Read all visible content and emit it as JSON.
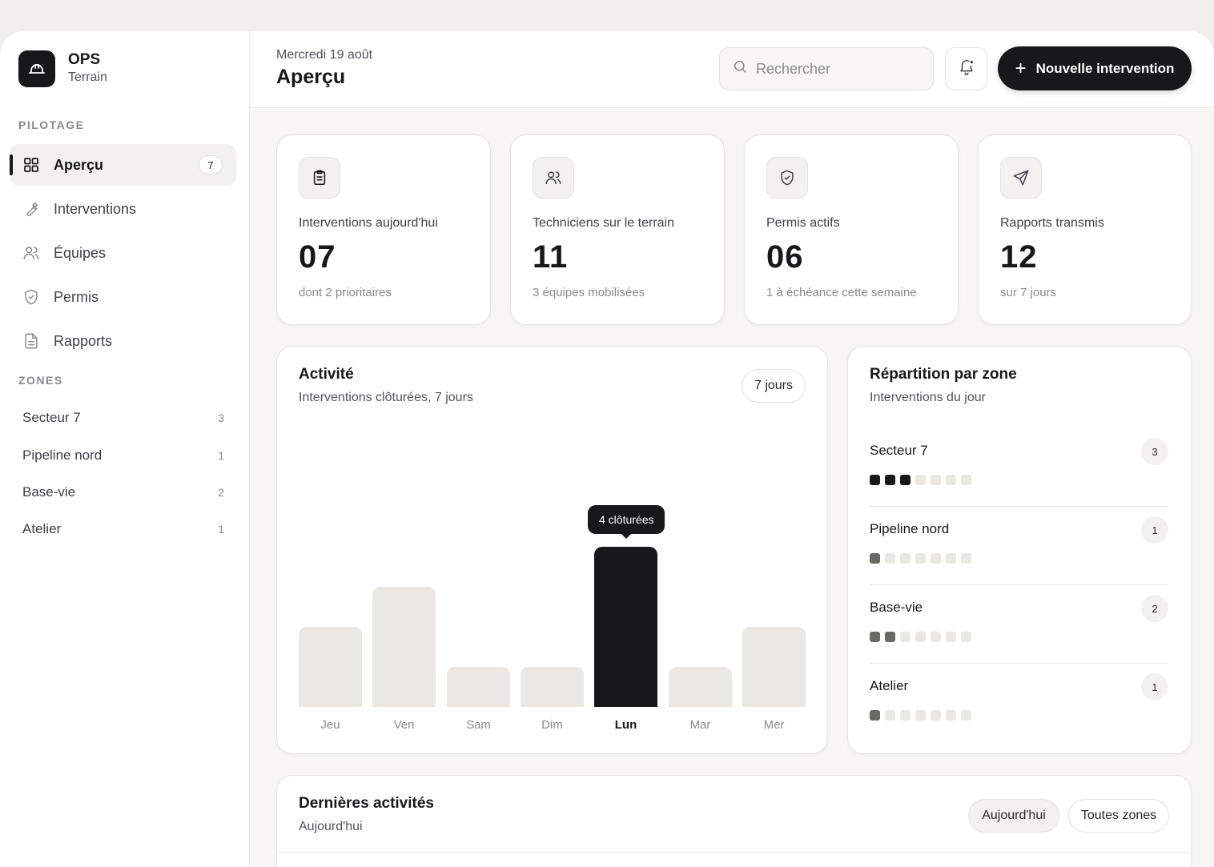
{
  "brand": {
    "name": "OPS",
    "subtitle": "Terrain"
  },
  "sidebar": {
    "section_pilotage": "PILOTAGE",
    "items": [
      {
        "label": "Aperçu",
        "icon": "grid-icon",
        "badge": "7",
        "active": true
      },
      {
        "label": "Interventions",
        "icon": "wrench-icon"
      },
      {
        "label": "Équipes",
        "icon": "users-icon"
      },
      {
        "label": "Permis",
        "icon": "shield-icon"
      },
      {
        "label": "Rapports",
        "icon": "document-icon"
      }
    ],
    "section_zones": "ZONES",
    "zones": [
      {
        "label": "Secteur 7",
        "count": "3"
      },
      {
        "label": "Pipeline nord",
        "count": "1"
      },
      {
        "label": "Base-vie",
        "count": "2"
      },
      {
        "label": "Atelier",
        "count": "1"
      }
    ]
  },
  "header": {
    "date": "Mercredi 19 août",
    "title": "Aperçu",
    "search_placeholder": "Rechercher",
    "new_button": "Nouvelle intervention"
  },
  "stats": [
    {
      "icon": "clipboard-icon",
      "label": "Interventions aujourd'hui",
      "value": "07",
      "note": "dont 2 prioritaires"
    },
    {
      "icon": "users-icon",
      "label": "Techniciens sur le terrain",
      "value": "11",
      "note": "3 équipes mobilisées"
    },
    {
      "icon": "shield-check-icon",
      "label": "Permis actifs",
      "value": "06",
      "note": "1 à échéance cette semaine"
    },
    {
      "icon": "send-icon",
      "label": "Rapports transmis",
      "value": "12",
      "note": "sur 7 jours"
    }
  ],
  "activity": {
    "title": "Activité",
    "subtitle": "Interventions clôturées, 7 jours",
    "range_button": "7 jours",
    "tooltip": "4 clôturées"
  },
  "chart_data": {
    "type": "bar",
    "categories": [
      "Jeu",
      "Ven",
      "Sam",
      "Dim",
      "Lun",
      "Mar",
      "Mer"
    ],
    "values": [
      2,
      3,
      1,
      1,
      4,
      1,
      2
    ],
    "highlight": "Lun",
    "ylim": [
      0,
      4
    ],
    "grid": false,
    "colors": {
      "bar": "#ebe8e3",
      "highlight": "#18181b"
    }
  },
  "zones_card": {
    "title": "Répartition par zone",
    "subtitle": "Interventions du jour",
    "rows": [
      {
        "name": "Secteur 7",
        "count": "3",
        "filled": 3,
        "tone": "dark"
      },
      {
        "name": "Pipeline nord",
        "count": "1",
        "filled": 1,
        "tone": "mid"
      },
      {
        "name": "Base-vie",
        "count": "2",
        "filled": 2,
        "tone": "mid"
      },
      {
        "name": "Atelier",
        "count": "1",
        "filled": 1,
        "tone": "mid"
      }
    ],
    "total_slots": 7
  },
  "recent": {
    "title": "Dernières activités",
    "subtitle": "Aujourd'hui",
    "filter_today": "Aujourd'hui",
    "filter_zones": "Toutes zones"
  },
  "colors": {
    "accent": "#18181b",
    "background": "#f7f6f4",
    "muted": "#8a8a8e"
  }
}
